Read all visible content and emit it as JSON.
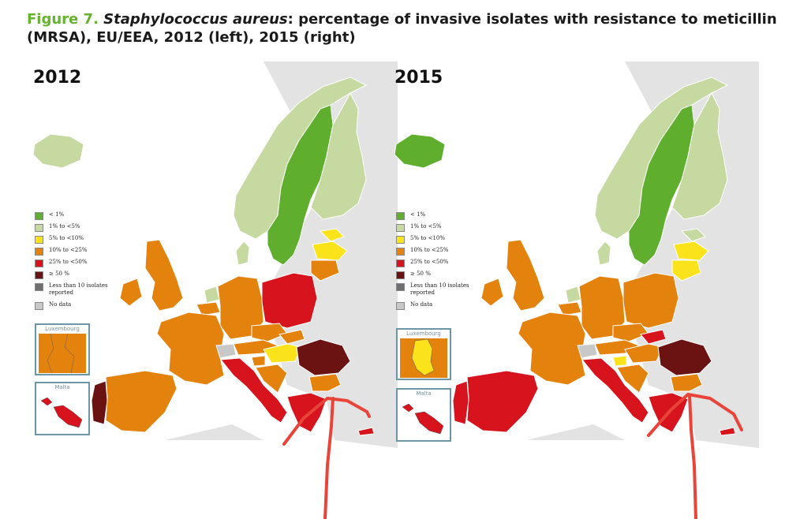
{
  "title": {
    "figure_label": "Figure 7.",
    "species": "Staphylococcus aureus",
    "text": ": percentage of invasive isolates with resistance to meticillin (MRSA), EU/EEA, 2012 (left), 2015 (right)"
  },
  "colors": {
    "lt1": "#5fae2e",
    "c1to5": "#c6d9a0",
    "c5to10": "#fbe31c",
    "c10to25": "#e4820e",
    "c25to50": "#d7141e",
    "ge50": "#6b1212",
    "lt10iso": "#6f6f6f",
    "nodata": "#c8c8c8",
    "background_land": "#e3e3e3",
    "annotation_red": "#e8443a"
  },
  "legend": [
    {
      "label": "< 1%",
      "color": "#5fae2e"
    },
    {
      "label": "1% to <5%",
      "color": "#c6d9a0"
    },
    {
      "label": "5% to <10%",
      "color": "#fbe31c"
    },
    {
      "label": "10% to <25%",
      "color": "#e4820e"
    },
    {
      "label": "25% to <50%",
      "color": "#d7141e"
    },
    {
      "label": "≥ 50 %",
      "color": "#6b1212"
    },
    {
      "label": "Less than 10 isolates reported",
      "color": "#6f6f6f"
    },
    {
      "label": "No data",
      "color": "#c8c8c8"
    }
  ],
  "maps": [
    {
      "year": "2012",
      "inset_luxembourg": "Luxembourg",
      "inset_malta": "Malta",
      "luxembourg_category": "10% to <25%",
      "malta_category": "25% to <50%",
      "regions": {
        "iceland": "#c6d9a0",
        "norway": "#c6d9a0",
        "sweden": "#5fae2e",
        "finland": "#c6d9a0",
        "denmark": "#c6d9a0",
        "netherlands": "#c6d9a0",
        "estonia": "#fbe31c",
        "latvia": "#fbe31c",
        "lithuania": "#e4820e",
        "uk": "#e4820e",
        "ireland": "#e4820e",
        "france": "#e4820e",
        "germany": "#e4820e",
        "poland": "#d7141e",
        "czech": "#e4820e",
        "slovakia": "#e4820e",
        "austria": "#e4820e",
        "hungary": "#fbe31c",
        "slovenia": "#e4820e",
        "croatia": "#e4820e",
        "romania": "#6b1212",
        "bulgaria": "#e4820e",
        "greece": "#d7141e",
        "italy": "#d7141e",
        "spain": "#e4820e",
        "portugal": "#6b1212",
        "belgium": "#e4820e",
        "cyprus": "#d7141e",
        "switzerland": "#c8c8c8"
      }
    },
    {
      "year": "2015",
      "inset_luxembourg": "Luxembourg",
      "inset_malta": "Malta",
      "luxembourg_category": "5% to <10%",
      "malta_category": "25% to <50%",
      "regions": {
        "iceland": "#5fae2e",
        "norway": "#c6d9a0",
        "sweden": "#5fae2e",
        "finland": "#c6d9a0",
        "denmark": "#c6d9a0",
        "netherlands": "#c6d9a0",
        "estonia": "#c6d9a0",
        "latvia": "#fbe31c",
        "lithuania": "#fbe31c",
        "uk": "#e4820e",
        "ireland": "#e4820e",
        "france": "#e4820e",
        "germany": "#e4820e",
        "poland": "#e4820e",
        "czech": "#e4820e",
        "slovakia": "#d7141e",
        "austria": "#e4820e",
        "hungary": "#e4820e",
        "slovenia": "#fbe31c",
        "croatia": "#e4820e",
        "romania": "#6b1212",
        "bulgaria": "#e4820e",
        "greece": "#d7141e",
        "italy": "#d7141e",
        "spain": "#d7141e",
        "portugal": "#d7141e",
        "belgium": "#e4820e",
        "cyprus": "#d7141e",
        "switzerland": "#c8c8c8"
      }
    }
  ]
}
